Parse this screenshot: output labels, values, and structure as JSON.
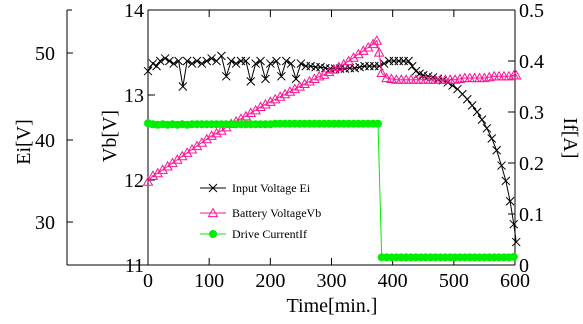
{
  "chart_data": {
    "type": "line",
    "x_axis": {
      "label": "Time[min.]",
      "range": [
        0,
        600
      ],
      "ticks": [
        0,
        100,
        200,
        300,
        400,
        500,
        600
      ]
    },
    "y_axes": {
      "Ei": {
        "label": "Ei[V]",
        "ticks": [
          30,
          40,
          50
        ]
      },
      "Vb": {
        "label": "Vb[V]",
        "range": [
          11,
          14
        ],
        "ticks": [
          11,
          12,
          13,
          14
        ]
      },
      "If": {
        "label": "If[A]",
        "range": [
          0,
          0.5
        ],
        "ticks": [
          "0",
          "0.1",
          "0.2",
          "0.3",
          "0.4",
          "0.5"
        ]
      }
    },
    "series": [
      {
        "name": "Input Voltage Ei",
        "axis": "If",
        "marker": "x",
        "color": "#000000",
        "points": [
          [
            0,
            0.38
          ],
          [
            8,
            0.395
          ],
          [
            14,
            0.39
          ],
          [
            20,
            0.4
          ],
          [
            28,
            0.405
          ],
          [
            35,
            0.4
          ],
          [
            42,
            0.395
          ],
          [
            50,
            0.4
          ],
          [
            57,
            0.35
          ],
          [
            64,
            0.4
          ],
          [
            72,
            0.395
          ],
          [
            80,
            0.4
          ],
          [
            88,
            0.395
          ],
          [
            96,
            0.4
          ],
          [
            104,
            0.405
          ],
          [
            112,
            0.4
          ],
          [
            120,
            0.41
          ],
          [
            128,
            0.37
          ],
          [
            136,
            0.4
          ],
          [
            144,
            0.395
          ],
          [
            152,
            0.4
          ],
          [
            160,
            0.4
          ],
          [
            168,
            0.36
          ],
          [
            176,
            0.395
          ],
          [
            184,
            0.4
          ],
          [
            192,
            0.365
          ],
          [
            200,
            0.395
          ],
          [
            210,
            0.4
          ],
          [
            218,
            0.37
          ],
          [
            226,
            0.4
          ],
          [
            234,
            0.395
          ],
          [
            242,
            0.365
          ],
          [
            250,
            0.395
          ],
          [
            258,
            0.39
          ],
          [
            266,
            0.39
          ],
          [
            274,
            0.388
          ],
          [
            282,
            0.388
          ],
          [
            290,
            0.386
          ],
          [
            298,
            0.385
          ],
          [
            306,
            0.385
          ],
          [
            314,
            0.385
          ],
          [
            322,
            0.385
          ],
          [
            330,
            0.386
          ],
          [
            338,
            0.386
          ],
          [
            346,
            0.388
          ],
          [
            354,
            0.39
          ],
          [
            362,
            0.39
          ],
          [
            370,
            0.39
          ],
          [
            378,
            0.39
          ],
          [
            386,
            0.395
          ],
          [
            394,
            0.4
          ],
          [
            402,
            0.4
          ],
          [
            410,
            0.4
          ],
          [
            418,
            0.4
          ],
          [
            426,
            0.4
          ],
          [
            432,
            0.39
          ],
          [
            438,
            0.38
          ],
          [
            444,
            0.375
          ],
          [
            450,
            0.372
          ],
          [
            458,
            0.37
          ],
          [
            466,
            0.368
          ],
          [
            474,
            0.365
          ],
          [
            482,
            0.362
          ],
          [
            490,
            0.358
          ],
          [
            498,
            0.352
          ],
          [
            506,
            0.345
          ],
          [
            514,
            0.335
          ],
          [
            522,
            0.325
          ],
          [
            530,
            0.313
          ],
          [
            538,
            0.3
          ],
          [
            546,
            0.285
          ],
          [
            554,
            0.268
          ],
          [
            562,
            0.248
          ],
          [
            570,
            0.225
          ],
          [
            578,
            0.195
          ],
          [
            585,
            0.165
          ],
          [
            592,
            0.125
          ],
          [
            598,
            0.08
          ],
          [
            602,
            0.045
          ]
        ]
      },
      {
        "name": "Battery VoltageVb",
        "axis": "Vb",
        "marker": "triangle",
        "color": "#ff1493",
        "points": [
          [
            0,
            11.98
          ],
          [
            8,
            12.05
          ],
          [
            16,
            12.08
          ],
          [
            24,
            12.12
          ],
          [
            32,
            12.16
          ],
          [
            40,
            12.2
          ],
          [
            48,
            12.24
          ],
          [
            56,
            12.28
          ],
          [
            64,
            12.32
          ],
          [
            72,
            12.36
          ],
          [
            80,
            12.4
          ],
          [
            88,
            12.44
          ],
          [
            96,
            12.48
          ],
          [
            104,
            12.52
          ],
          [
            112,
            12.55
          ],
          [
            120,
            12.58
          ],
          [
            128,
            12.62
          ],
          [
            136,
            12.66
          ],
          [
            144,
            12.69
          ],
          [
            152,
            12.72
          ],
          [
            160,
            12.75
          ],
          [
            168,
            12.79
          ],
          [
            176,
            12.82
          ],
          [
            184,
            12.86
          ],
          [
            192,
            12.89
          ],
          [
            200,
            12.92
          ],
          [
            208,
            12.95
          ],
          [
            216,
            12.98
          ],
          [
            224,
            13.01
          ],
          [
            232,
            13.04
          ],
          [
            240,
            13.07
          ],
          [
            248,
            13.1
          ],
          [
            256,
            13.13
          ],
          [
            264,
            13.16
          ],
          [
            272,
            13.19
          ],
          [
            280,
            13.22
          ],
          [
            288,
            13.24
          ],
          [
            296,
            13.27
          ],
          [
            304,
            13.3
          ],
          [
            312,
            13.33
          ],
          [
            320,
            13.36
          ],
          [
            328,
            13.4
          ],
          [
            336,
            13.44
          ],
          [
            344,
            13.48
          ],
          [
            352,
            13.52
          ],
          [
            360,
            13.56
          ],
          [
            368,
            13.6
          ],
          [
            374,
            13.64
          ],
          [
            378,
            13.5
          ],
          [
            382,
            13.26
          ],
          [
            390,
            13.2
          ],
          [
            398,
            13.19
          ],
          [
            406,
            13.18
          ],
          [
            414,
            13.18
          ],
          [
            422,
            13.18
          ],
          [
            430,
            13.18
          ],
          [
            438,
            13.18
          ],
          [
            446,
            13.18
          ],
          [
            454,
            13.18
          ],
          [
            462,
            13.18
          ],
          [
            470,
            13.18
          ],
          [
            478,
            13.18
          ],
          [
            486,
            13.18
          ],
          [
            494,
            13.18
          ],
          [
            502,
            13.18
          ],
          [
            510,
            13.19
          ],
          [
            518,
            13.2
          ],
          [
            526,
            13.2
          ],
          [
            534,
            13.2
          ],
          [
            542,
            13.2
          ],
          [
            550,
            13.2
          ],
          [
            558,
            13.21
          ],
          [
            566,
            13.22
          ],
          [
            574,
            13.22
          ],
          [
            582,
            13.22
          ],
          [
            590,
            13.22
          ],
          [
            598,
            13.23
          ],
          [
            602,
            13.23
          ]
        ]
      },
      {
        "name": "Drive CurrentIf",
        "axis": "If",
        "marker": "circle",
        "color": "#00ee00",
        "points": [
          [
            0,
            0.278
          ],
          [
            8,
            0.276
          ],
          [
            16,
            0.275
          ],
          [
            24,
            0.276
          ],
          [
            32,
            0.275
          ],
          [
            40,
            0.276
          ],
          [
            48,
            0.275
          ],
          [
            56,
            0.276
          ],
          [
            64,
            0.275
          ],
          [
            72,
            0.276
          ],
          [
            80,
            0.276
          ],
          [
            88,
            0.276
          ],
          [
            96,
            0.276
          ],
          [
            104,
            0.276
          ],
          [
            112,
            0.276
          ],
          [
            120,
            0.276
          ],
          [
            128,
            0.276
          ],
          [
            136,
            0.276
          ],
          [
            144,
            0.276
          ],
          [
            152,
            0.276
          ],
          [
            160,
            0.276
          ],
          [
            168,
            0.276
          ],
          [
            176,
            0.276
          ],
          [
            184,
            0.276
          ],
          [
            192,
            0.276
          ],
          [
            200,
            0.276
          ],
          [
            208,
            0.277
          ],
          [
            216,
            0.277
          ],
          [
            224,
            0.277
          ],
          [
            232,
            0.277
          ],
          [
            240,
            0.277
          ],
          [
            248,
            0.277
          ],
          [
            256,
            0.277
          ],
          [
            264,
            0.277
          ],
          [
            272,
            0.277
          ],
          [
            280,
            0.277
          ],
          [
            288,
            0.277
          ],
          [
            296,
            0.277
          ],
          [
            304,
            0.277
          ],
          [
            312,
            0.277
          ],
          [
            320,
            0.277
          ],
          [
            328,
            0.277
          ],
          [
            336,
            0.277
          ],
          [
            344,
            0.277
          ],
          [
            352,
            0.277
          ],
          [
            360,
            0.277
          ],
          [
            368,
            0.277
          ],
          [
            376,
            0.277
          ],
          [
            382,
            0.015
          ],
          [
            390,
            0.015
          ],
          [
            398,
            0.015
          ],
          [
            406,
            0.015
          ],
          [
            414,
            0.015
          ],
          [
            422,
            0.015
          ],
          [
            430,
            0.015
          ],
          [
            438,
            0.015
          ],
          [
            446,
            0.015
          ],
          [
            454,
            0.015
          ],
          [
            462,
            0.015
          ],
          [
            470,
            0.015
          ],
          [
            478,
            0.015
          ],
          [
            486,
            0.015
          ],
          [
            494,
            0.015
          ],
          [
            502,
            0.015
          ],
          [
            510,
            0.015
          ],
          [
            518,
            0.015
          ],
          [
            526,
            0.015
          ],
          [
            534,
            0.015
          ],
          [
            542,
            0.015
          ],
          [
            550,
            0.015
          ],
          [
            558,
            0.015
          ],
          [
            566,
            0.015
          ],
          [
            574,
            0.015
          ],
          [
            582,
            0.015
          ],
          [
            590,
            0.015
          ],
          [
            598,
            0.016
          ]
        ]
      }
    ],
    "legend": {
      "position": "center-left"
    },
    "grid": false
  }
}
